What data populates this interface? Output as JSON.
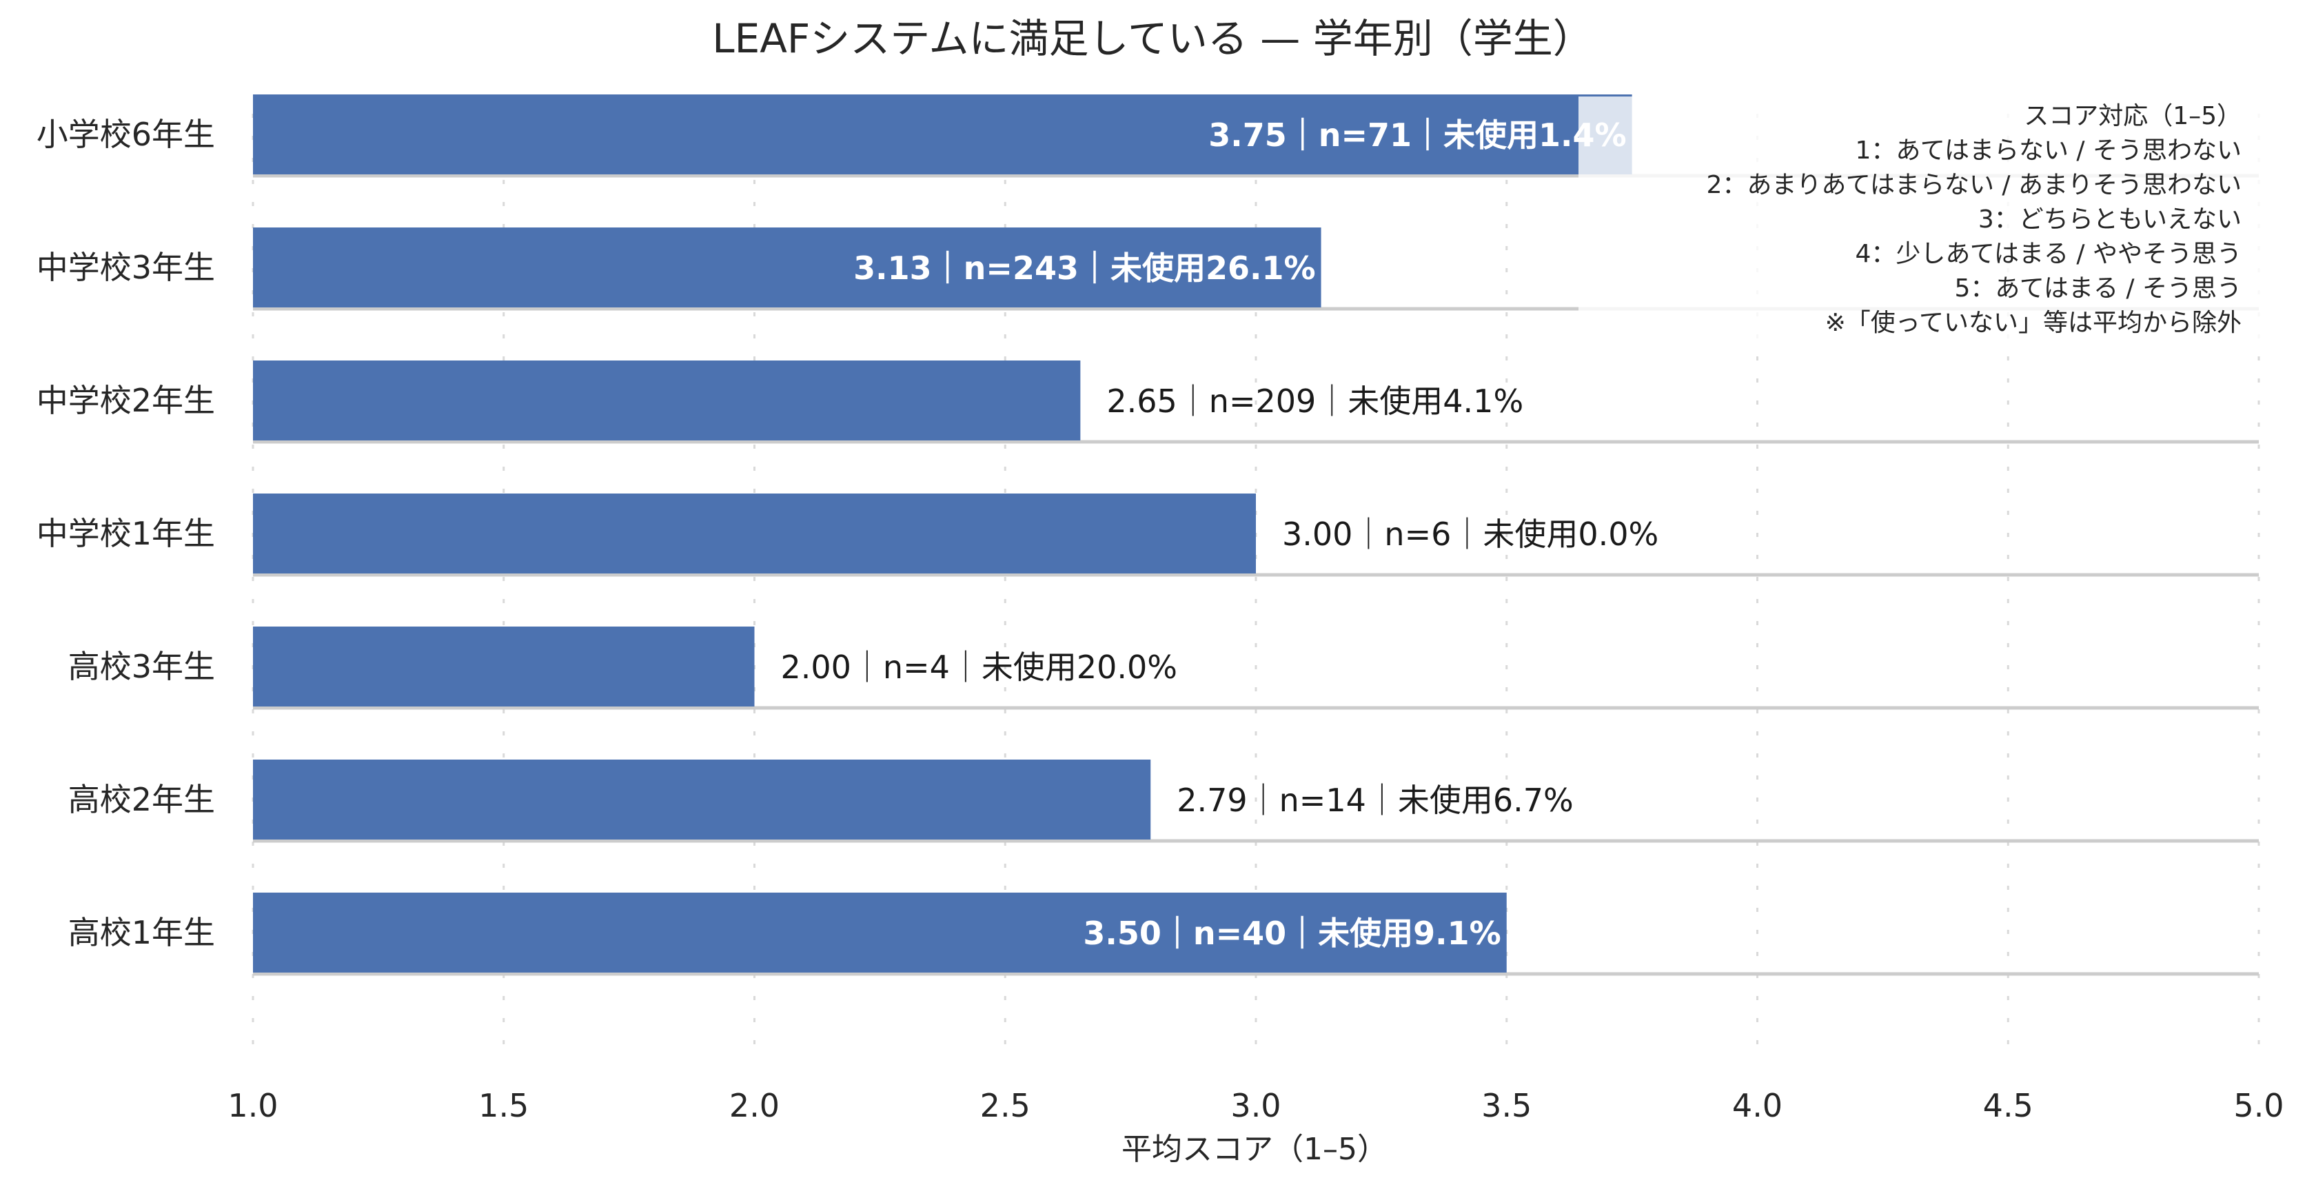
{
  "chart_data": {
    "type": "bar",
    "orientation": "horizontal",
    "title": "LEAFシステムに満足している — 学年別（学生）",
    "xlabel": "平均スコア（1–5）",
    "ylabel": "",
    "xlim": [
      1.0,
      5.0
    ],
    "x_ticks": [
      "1.0",
      "1.5",
      "2.0",
      "2.5",
      "3.0",
      "3.5",
      "4.0",
      "4.5",
      "5.0"
    ],
    "grid": true,
    "bar_color": "#4c72b0",
    "categories": [
      "小学校6年生",
      "中学校3年生",
      "中学校2年生",
      "中学校1年生",
      "高校3年生",
      "高校2年生",
      "高校1年生"
    ],
    "values": [
      3.75,
      3.13,
      2.65,
      3.0,
      2.0,
      2.79,
      3.5
    ],
    "n": [
      71,
      243,
      209,
      6,
      4,
      14,
      40
    ],
    "unused_pct": [
      1.4,
      26.1,
      4.1,
      0.0,
      20.0,
      6.7,
      9.1
    ],
    "bar_labels": [
      "3.75｜n=71｜未使用1.4%",
      "3.13｜n=243｜未使用26.1%",
      "2.65｜n=209｜未使用4.1%",
      "3.00｜n=6｜未使用0.0%",
      "2.00｜n=4｜未使用20.0%",
      "2.79｜n=14｜未使用6.7%",
      "3.50｜n=40｜未使用9.1%"
    ],
    "legend_placement": "top-right",
    "legend_lines": [
      "スコア対応（1–5）",
      "1：あてはまらない / そう思わない",
      "2：あまりあてはまらない / あまりそう思わない",
      "3：どちらともいえない",
      "4：少しあてはまる / ややそう思う",
      "5：あてはまる / そう思う",
      "※「使っていない」等は平均から除外"
    ]
  }
}
